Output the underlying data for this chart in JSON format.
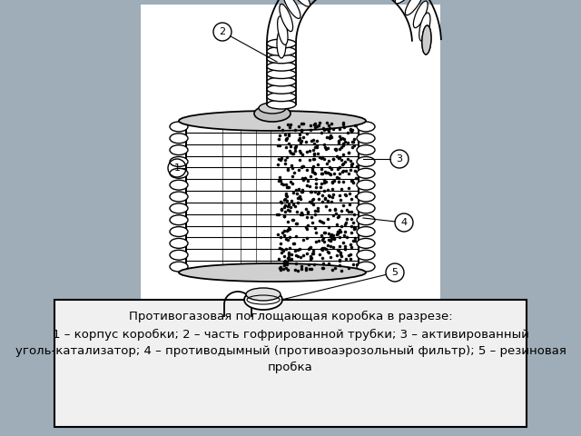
{
  "bg_color": "#9eadb8",
  "panel_bg": "#ffffff",
  "caption_bg": "#f0f0f0",
  "caption_border": "#000000",
  "title_text": "Противогазовая поглощающая коробка в разрезе:",
  "caption_text": "1 – корпус коробки; 2 – часть гофрированной трубки; 3 – активированный уголь-катализатор; 4 – противодымный (противоаэрозольный фильтр); 5 – резиновая пробка",
  "font_size_caption": 9.5,
  "font_size_title": 9.5
}
